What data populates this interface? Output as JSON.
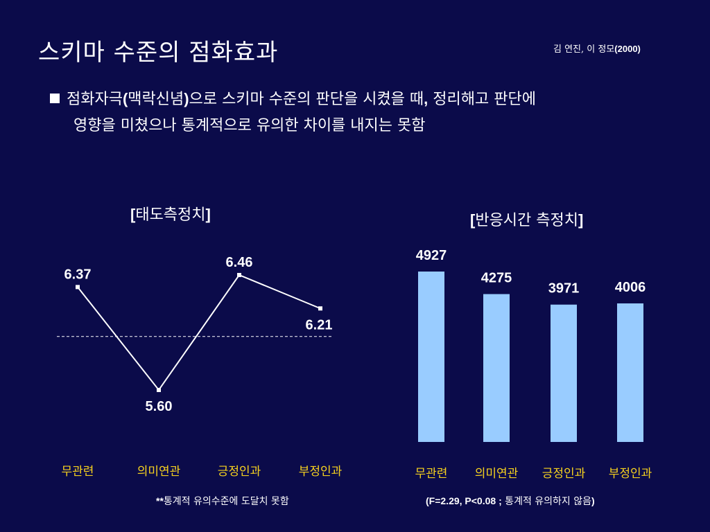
{
  "slide": {
    "title": "스키마 수준의 점화효과",
    "citation_names": "김 연진, 이 정모",
    "citation_year": "(2000)",
    "bullet_line1_a": "점화자극",
    "bullet_line1_b": "(",
    "bullet_line1_c": "맥락신념",
    "bullet_line1_d": ")",
    "bullet_line1_e": "으로 스키마 수준의 판단을 시켰을 때",
    "bullet_line1_f": ",",
    "bullet_line1_g": " 정리해고 판단에",
    "bullet_line2": "영향을 미쳤으나 통계적으로 유의한 차이를 내지는 못함"
  },
  "left_chart": {
    "title_open": "[",
    "title_text": "태도측정치",
    "title_close": "]",
    "note_stars": "**",
    "note_text": "통계적 유의수준에 도달치 못함"
  },
  "right_chart": {
    "title_open": "[",
    "title_text": "반응시간 측정치",
    "title_close": "]",
    "note_a": "(F=2.29, P<0.08 ;",
    "note_b": " 통계적 유의하지 않음",
    "note_c": ")"
  },
  "colors": {
    "background": "#0b0b4a",
    "category_text": "#f7d21e",
    "bar_fill": "#99ccff",
    "line": "#ffffff"
  },
  "chart_data": [
    {
      "type": "line",
      "categories": [
        "무관련",
        "의미연관",
        "긍정인과",
        "부정인과"
      ],
      "values": [
        6.37,
        5.6,
        6.46,
        6.21
      ],
      "labels": [
        "6.37",
        "5.60",
        "6.46",
        "6.21"
      ],
      "title": "[태도측정치]",
      "ylim": [
        5.4,
        6.75
      ],
      "reference_line": 6.0
    },
    {
      "type": "bar",
      "categories": [
        "무관련",
        "의미연관",
        "긍정인과",
        "부정인과"
      ],
      "values": [
        4927,
        4275,
        3971,
        4006
      ],
      "labels": [
        "4927",
        "4275",
        "3971",
        "4006"
      ],
      "title": "[반응시간 측정치]",
      "ylim": [
        0,
        5400
      ]
    }
  ]
}
